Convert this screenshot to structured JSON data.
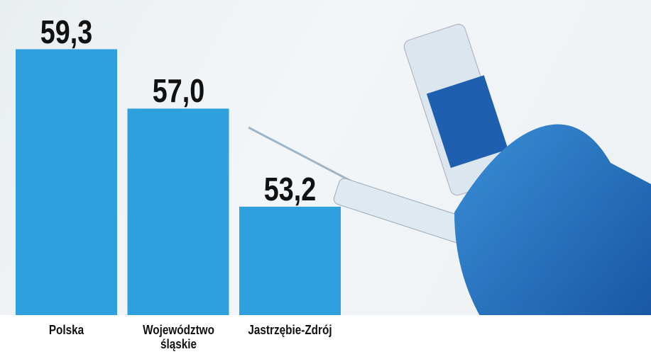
{
  "chart_data": {
    "type": "bar",
    "categories": [
      "Polska",
      "Województwo śląskie",
      "Jastrzębie-Zdrój"
    ],
    "values": [
      59.3,
      57.0,
      53.2
    ],
    "value_labels": [
      "59,3",
      "57,0",
      "53,2"
    ],
    "color": "#2ea0dd",
    "ylim": [
      49,
      60
    ]
  }
}
